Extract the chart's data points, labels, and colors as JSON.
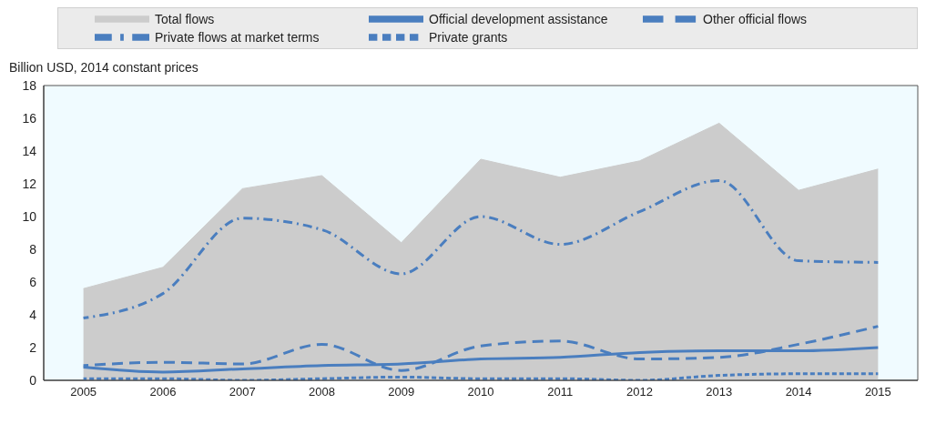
{
  "chart_data": {
    "type": "line",
    "ylabel": "Billion USD, 2014 constant prices",
    "categories": [
      "2005",
      "2006",
      "2007",
      "2008",
      "2009",
      "2010",
      "2011",
      "2012",
      "2013",
      "2014",
      "2015"
    ],
    "ylim": [
      0,
      18
    ],
    "yticks": [
      0,
      2,
      4,
      6,
      8,
      10,
      12,
      14,
      16,
      18
    ],
    "grid": false,
    "legend": "top",
    "series": [
      {
        "name": "Total flows",
        "type": "area",
        "color": "#cccccc",
        "values": [
          5.6,
          6.9,
          11.7,
          12.5,
          8.4,
          13.5,
          12.4,
          13.4,
          15.7,
          11.6,
          12.9
        ]
      },
      {
        "name": "Official development assistance",
        "color": "#4a7ebf",
        "line_style": "solid",
        "values": [
          0.8,
          0.5,
          0.7,
          0.9,
          1.0,
          1.3,
          1.4,
          1.7,
          1.8,
          1.8,
          2.0
        ]
      },
      {
        "name": "Other official flows",
        "color": "#4a7ebf",
        "line_style": "dashed",
        "values": [
          0.9,
          1.1,
          1.0,
          2.2,
          0.6,
          2.1,
          2.4,
          1.3,
          1.4,
          2.2,
          3.3
        ]
      },
      {
        "name": "Private flows at market terms",
        "color": "#4a7ebf",
        "line_style": "dashdot",
        "values": [
          3.8,
          5.3,
          9.9,
          9.2,
          6.5,
          10.0,
          8.3,
          10.3,
          12.2,
          7.3,
          7.2
        ]
      },
      {
        "name": "Private grants",
        "color": "#4a7ebf",
        "line_style": "dotted",
        "values": [
          0.1,
          0.1,
          0.0,
          0.1,
          0.2,
          0.1,
          0.1,
          0.0,
          0.3,
          0.4,
          0.4
        ]
      }
    ]
  }
}
